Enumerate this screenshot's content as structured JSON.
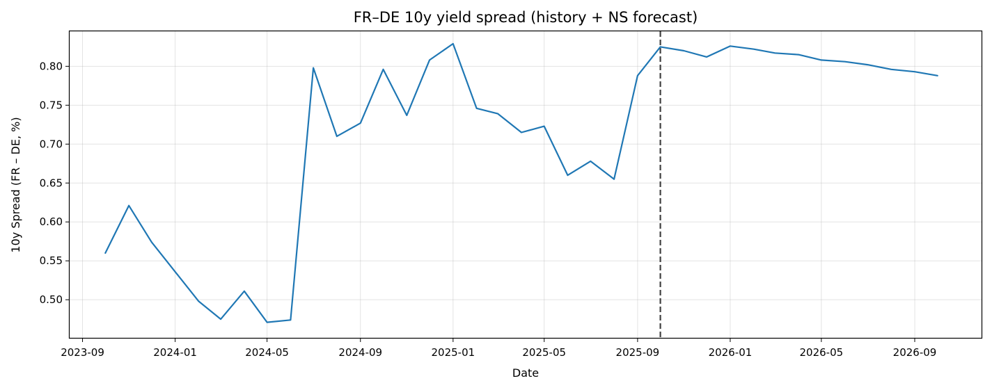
{
  "chart_data": {
    "type": "line",
    "title": "FR–DE 10y yield spread (history + NS forecast)",
    "xlabel": "Date",
    "ylabel": "10y Spread (FR – DE, %)",
    "xlim": [
      "2023-08-15",
      "2026-11-28"
    ],
    "ylim": [
      0.451,
      0.845
    ],
    "x_ticks": [
      "2023-09",
      "2024-01",
      "2024-05",
      "2024-09",
      "2025-01",
      "2025-05",
      "2025-09",
      "2026-01",
      "2026-05",
      "2026-09"
    ],
    "y_ticks": [
      0.5,
      0.55,
      0.6,
      0.65,
      0.7,
      0.75,
      0.8
    ],
    "grid": true,
    "forecast_start": "2025-10-01",
    "line_color": "#1f77b4",
    "forecast_marker_color": "#404040",
    "series": [
      {
        "x": [
          "2023-10-01",
          "2023-11-01",
          "2023-12-01",
          "2024-01-01",
          "2024-02-01",
          "2024-03-01",
          "2024-04-01",
          "2024-05-01",
          "2024-06-01",
          "2024-07-01",
          "2024-08-01",
          "2024-09-01",
          "2024-10-01",
          "2024-11-01",
          "2024-12-01",
          "2025-01-01",
          "2025-02-01",
          "2025-03-01",
          "2025-04-01",
          "2025-05-01",
          "2025-06-01",
          "2025-07-01",
          "2025-08-01",
          "2025-09-01",
          "2025-10-01",
          "2025-11-01",
          "2025-12-01",
          "2026-01-01",
          "2026-02-01",
          "2026-03-01",
          "2026-04-01",
          "2026-05-01",
          "2026-06-01",
          "2026-07-01",
          "2026-08-01",
          "2026-09-01",
          "2026-10-01"
        ],
        "y": [
          0.56,
          0.621,
          0.574,
          0.536,
          0.498,
          0.475,
          0.511,
          0.471,
          0.474,
          0.798,
          0.71,
          0.727,
          0.796,
          0.737,
          0.808,
          0.829,
          0.746,
          0.739,
          0.715,
          0.723,
          0.66,
          0.678,
          0.655,
          0.788,
          0.825,
          0.82,
          0.812,
          0.826,
          0.822,
          0.817,
          0.815,
          0.808,
          0.806,
          0.802,
          0.796,
          0.793,
          0.788
        ]
      }
    ]
  }
}
